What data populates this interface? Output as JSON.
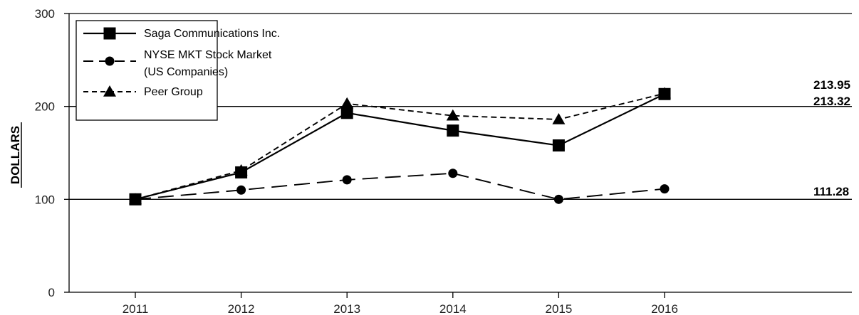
{
  "chart_data": {
    "type": "line",
    "title": "",
    "xlabel": "",
    "ylabel": "DOLLARS",
    "ylim": [
      0,
      300
    ],
    "yticks": [
      "0",
      "100",
      "200",
      "300"
    ],
    "grid": "horizontal at 100, 200, 300",
    "legend_placement": "top-left",
    "categories": [
      "2011",
      "2012",
      "2013",
      "2014",
      "2015",
      "2016"
    ],
    "series": [
      {
        "name": "Saga Communications Inc.",
        "marker": "square",
        "line_style": "solid",
        "values": [
          100,
          129,
          193,
          174,
          158,
          213.32
        ]
      },
      {
        "name": "NYSE MKT Stock Market",
        "name_line2": "(US Companies)",
        "marker": "circle",
        "line_style": "long-dash",
        "values": [
          100,
          110,
          121,
          128,
          100,
          111.28
        ]
      },
      {
        "name": "Peer Group",
        "marker": "triangle",
        "line_style": "short-dash",
        "values": [
          100,
          131,
          203,
          190,
          186,
          213.95
        ]
      }
    ],
    "end_labels": [
      "213.95",
      "213.32",
      "111.28"
    ],
    "colors": {
      "line": "#000000",
      "grid": "#000000"
    }
  }
}
